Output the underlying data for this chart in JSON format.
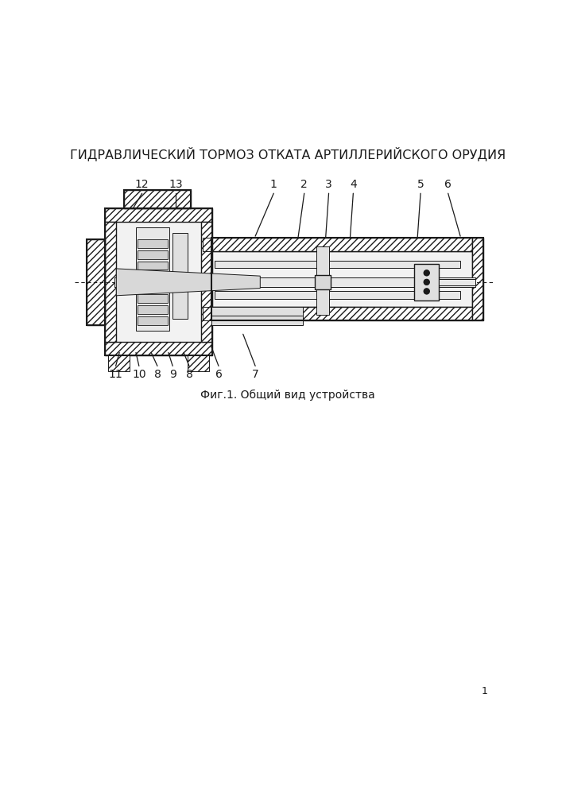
{
  "title": "ГИДРАВЛИЧЕСКИЙ ТОРМОЗ ОТКАТА АРТИЛЛЕРИЙСКОГО ОРУДИЯ",
  "caption": "Фиг.1. Общий вид устройства",
  "bg_color": "#ffffff",
  "line_color": "#1a1a1a",
  "title_fontsize": 11.5,
  "caption_fontsize": 10,
  "label_fontsize": 10
}
